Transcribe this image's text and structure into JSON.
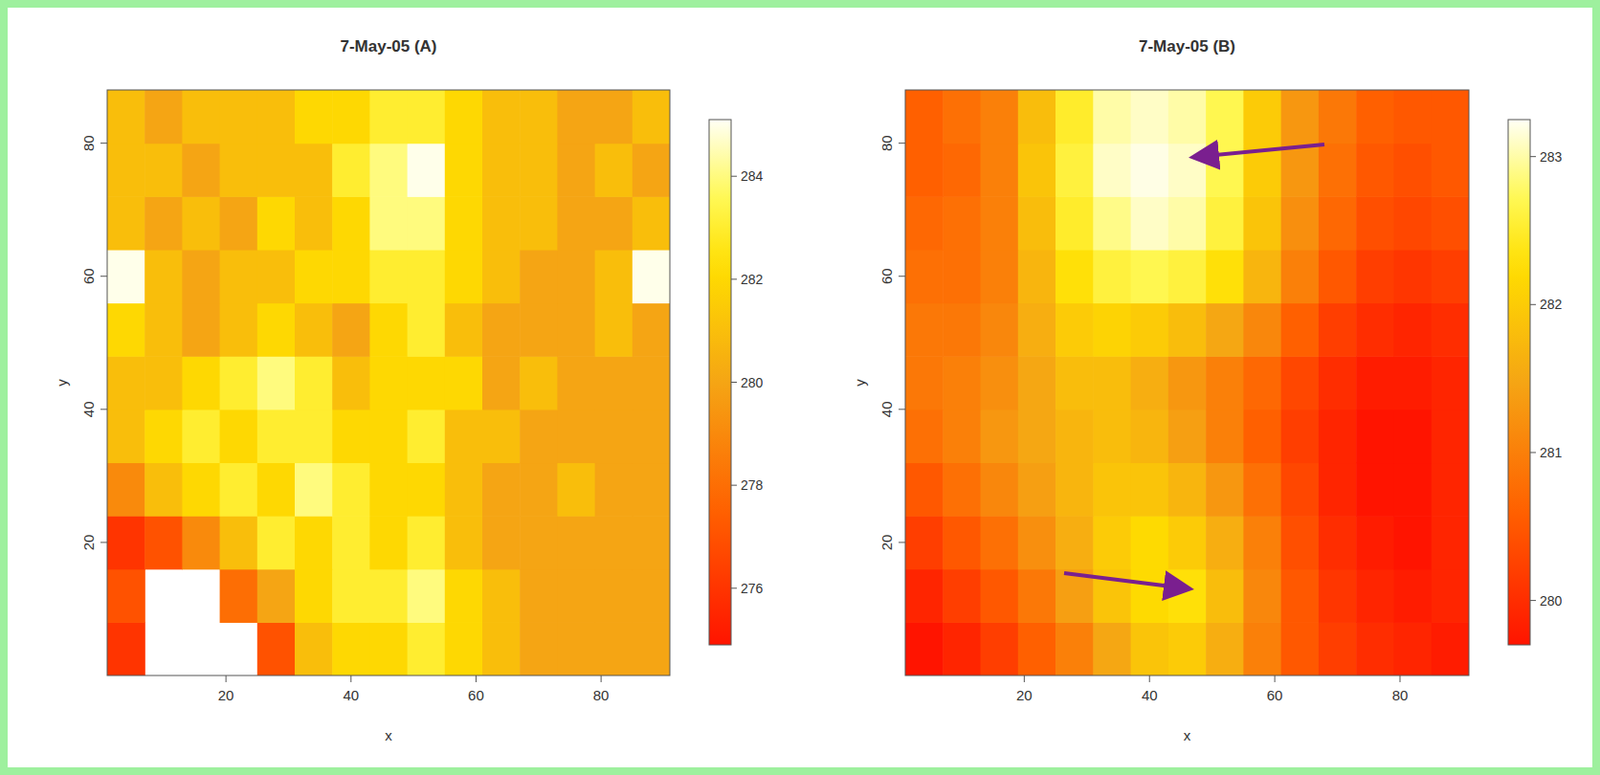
{
  "chart_data": [
    {
      "type": "heatmap",
      "title": "7-May-05 (A)",
      "x_label": "x",
      "y_label": "y",
      "xlim": [
        1,
        91
      ],
      "ylim": [
        0,
        88
      ],
      "xticks": [
        20,
        40,
        60,
        80
      ],
      "yticks": [
        20,
        40,
        60,
        80
      ],
      "x": [
        4,
        10,
        16,
        22,
        28,
        34,
        40,
        46,
        52,
        58,
        64,
        70,
        76,
        82,
        88
      ],
      "y": [
        4,
        12,
        20,
        28,
        36,
        44,
        52,
        60,
        68,
        76,
        84
      ],
      "values": [
        [
          276,
          null,
          null,
          null,
          277,
          281,
          282,
          282,
          283,
          282,
          281,
          280,
          280,
          280,
          280
        ],
        [
          277,
          null,
          null,
          278,
          280,
          282,
          283,
          283,
          284,
          282,
          281,
          280,
          280,
          280,
          280
        ],
        [
          276,
          277,
          279,
          281,
          283,
          282,
          283,
          282,
          283,
          281,
          280,
          280,
          280,
          280,
          280
        ],
        [
          279,
          281,
          282,
          283,
          282,
          284,
          283,
          282,
          282,
          281,
          280,
          280,
          281,
          280,
          280
        ],
        [
          281,
          282,
          283,
          282,
          283,
          283,
          282,
          282,
          283,
          281,
          281,
          280,
          280,
          280,
          280
        ],
        [
          281,
          281,
          282,
          283,
          284,
          283,
          281,
          282,
          282,
          282,
          280,
          281,
          280,
          280,
          280
        ],
        [
          282,
          281,
          280,
          281,
          282,
          281,
          280,
          282,
          283,
          281,
          280,
          280,
          280,
          281,
          280
        ],
        [
          285,
          281,
          280,
          281,
          281,
          282,
          282,
          283,
          283,
          282,
          281,
          280,
          280,
          281,
          285
        ],
        [
          281,
          280,
          281,
          280,
          282,
          281,
          282,
          284,
          284,
          282,
          281,
          281,
          280,
          280,
          281
        ],
        [
          281,
          281,
          280,
          281,
          281,
          281,
          283,
          284,
          285,
          282,
          281,
          281,
          280,
          281,
          280
        ],
        [
          281,
          280,
          281,
          281,
          281,
          282,
          282,
          283,
          283,
          282,
          281,
          281,
          280,
          280,
          281
        ]
      ],
      "zlim": [
        274.9,
        285.1
      ],
      "zticks": [
        276,
        278,
        280,
        282,
        284
      ]
    },
    {
      "type": "heatmap",
      "title": "7-May-05 (B)",
      "x_label": "x",
      "y_label": "y",
      "xlim": [
        1,
        91
      ],
      "ylim": [
        0,
        88
      ],
      "xticks": [
        20,
        40,
        60,
        80
      ],
      "yticks": [
        20,
        40,
        60,
        80
      ],
      "x": [
        4,
        10,
        16,
        22,
        28,
        34,
        40,
        46,
        52,
        58,
        64,
        70,
        76,
        82,
        88
      ],
      "y": [
        4,
        12,
        20,
        28,
        36,
        44,
        52,
        60,
        68,
        76,
        84
      ],
      "values": [
        [
          279.7,
          279.9,
          280.2,
          280.6,
          281.0,
          281.5,
          281.9,
          282.0,
          281.6,
          281.0,
          280.5,
          280.2,
          280.0,
          279.9,
          279.8
        ],
        [
          279.9,
          280.2,
          280.5,
          280.9,
          281.4,
          281.9,
          282.2,
          282.3,
          281.8,
          281.1,
          280.5,
          280.1,
          279.9,
          279.8,
          279.9
        ],
        [
          280.2,
          280.5,
          280.8,
          281.2,
          281.6,
          282.0,
          282.2,
          282.0,
          281.6,
          281.0,
          280.4,
          280.0,
          279.8,
          279.7,
          279.9
        ],
        [
          280.5,
          280.8,
          281.1,
          281.4,
          281.7,
          281.9,
          281.9,
          281.7,
          281.3,
          280.8,
          280.3,
          279.9,
          279.7,
          279.7,
          279.9
        ],
        [
          280.8,
          281.0,
          281.3,
          281.5,
          281.7,
          281.8,
          281.7,
          281.4,
          281.0,
          280.6,
          280.2,
          279.9,
          279.7,
          279.7,
          279.9
        ],
        [
          280.9,
          281.0,
          281.2,
          281.5,
          281.8,
          281.8,
          281.6,
          281.3,
          281.0,
          280.7,
          280.3,
          280.0,
          279.8,
          279.8,
          279.9
        ],
        [
          280.9,
          280.9,
          281.1,
          281.6,
          282.0,
          282.1,
          282.0,
          281.8,
          281.5,
          281.1,
          280.6,
          280.2,
          280.0,
          279.9,
          280.0
        ],
        [
          280.8,
          280.8,
          281.0,
          281.7,
          282.3,
          282.6,
          282.7,
          282.6,
          282.3,
          281.7,
          281.0,
          280.5,
          280.2,
          280.1,
          280.2
        ],
        [
          280.7,
          280.8,
          281.0,
          281.8,
          282.5,
          282.9,
          283.1,
          283.0,
          282.6,
          281.9,
          281.2,
          280.7,
          280.4,
          280.3,
          280.4
        ],
        [
          280.6,
          280.7,
          281.0,
          281.9,
          282.6,
          283.1,
          283.2,
          283.1,
          282.7,
          282.0,
          281.3,
          280.8,
          280.5,
          280.4,
          280.5
        ],
        [
          280.6,
          280.8,
          281.0,
          281.8,
          282.5,
          283.0,
          283.1,
          283.0,
          282.7,
          282.0,
          281.3,
          280.9,
          280.6,
          280.5,
          280.5
        ]
      ],
      "zlim": [
        279.7,
        283.25
      ],
      "zticks": [
        280,
        281,
        282,
        283
      ]
    }
  ]
}
